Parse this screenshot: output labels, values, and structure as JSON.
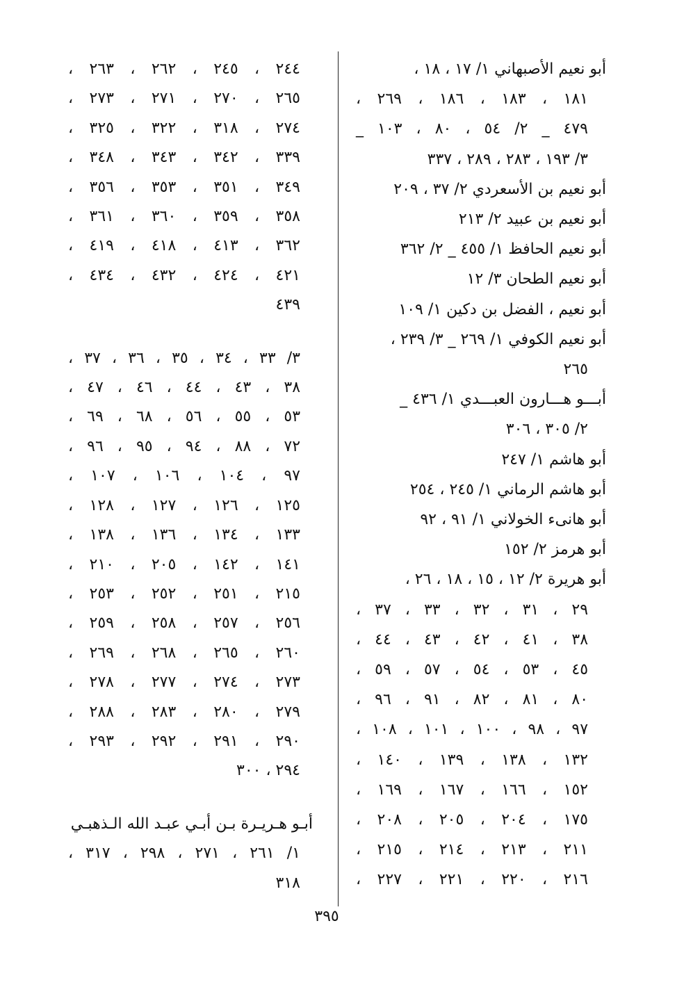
{
  "page_number": "٣٩٥",
  "right_column": {
    "lines": [
      "أبو نعيم الأصبهاني ١/ ١٧ ، ١٨ ،",
      "١٨١ ، ١٨٣ ، ١٨٦ ، ٢٦٩ ،",
      "٤٧٩ _ ٢/ ٥٤ ، ٨٠ ، ١٠٣ _",
      "٣/ ١٩٣ ، ٢٨٣ ، ٢٨٩ ، ٣٣٧",
      "أبو نعيم بن الأسعردي ٢/ ٣٧ ، ٢٠٩",
      "أبو نعيم بن عبيد ٢/ ٢١٣",
      "أبو نعيم الحافظ ١/ ٤٥٥ _ ٢/ ٣٦٢",
      "أبو نعيم الطحان ٣/ ١٢",
      "أبو نعيم ، الفضل بن دكين ١/ ١٠٩",
      "أبو نعيم الكوفي ١/ ٢٦٩ _ ٣/ ٢٣٩ ،",
      "٢٦٥",
      "أبـــو هـــارون العبـــدي ١/ ٤٣٦ _",
      "٢/ ٣٠٥ ، ٣٠٦",
      "أبو هاشم ١/ ٢٤٧",
      "أبو هاشم الرماني ١/ ٢٤٥ ، ٢٥٤",
      "أبو هانىء الخولاني ١/ ٩١ ، ٩٢",
      "أبو هرمز ٢/ ١٥٢",
      "أبو هريرة ٢/ ١٢ ، ١٥ ، ١٨ ، ٢٦ ،",
      "٢٩ ، ٣١ ، ٣٢ ، ٣٣ ، ٣٧ ،",
      "٣٨ ، ٤١ ، ٤٢ ، ٤٣ ، ٤٤ ،",
      "٤٥ ، ٥٣ ، ٥٤ ، ٥٧ ، ٥٩ ،",
      "٨٠ ، ٨١ ، ٨٢ ، ٩١ ، ٩٦ ،",
      "٩٧ ، ٩٨ ، ١٠٠ ، ١٠١ ، ١٠٨ ،",
      "١٣٢ ، ١٣٨ ، ١٣٩ ، ١٤٠ ،",
      "١٥٢ ، ١٦٦ ، ١٦٧ ، ١٦٩ ،",
      "١٧٥ ، ٢٠٤ ، ٢٠٥ ، ٢٠٨ ،",
      "٢١١ ، ٢١٣ ، ٢١٤ ، ٢١٥ ،",
      "٢١٦ ، ٢٢٠ ، ٢٢١ ، ٢٢٧ ،"
    ]
  },
  "left_column": {
    "lines": [
      "٢٤٤ ، ٢٤٥ ، ٢٦٢ ، ٢٦٣ ،",
      "٢٦٥ ، ٢٧٠ ، ٢٧١ ، ٢٧٣ ،",
      "٢٧٤ ، ٣١٨ ، ٣٢٢ ، ٣٢٥ ،",
      "٣٣٩ ، ٣٤٢ ، ٣٤٣ ، ٣٤٨ ،",
      "٣٤٩ ، ٣٥١ ، ٣٥٣ ، ٣٥٦ ،",
      "٣٥٨ ، ٣٥٩ ، ٣٦٠ ، ٣٦١ ،",
      "٣٦٢ ، ٤١٣ ، ٤١٨ ، ٤١٩ ،",
      "٤٢١ ، ٤٢٤ ، ٤٣٢ ، ٤٣٤ ،",
      "٤٣٩",
      "٣/ ٣٣ ، ٣٤ ، ٣٥ ، ٣٦ ، ٣٧ ،",
      "٣٨ ، ٤٣ ، ٤٤ ، ٤٦ ، ٤٧ ،",
      "٥٣ ، ٥٥ ، ٥٦ ، ٦٨ ، ٦٩ ،",
      "٧٢ ، ٨٨ ، ٩٤ ، ٩٥ ، ٩٦ ،",
      "٩٧ ، ١٠٤ ، ١٠٦ ، ١٠٧ ،",
      "١٢٥ ، ١٢٦ ، ١٢٧ ، ١٢٨ ،",
      "١٣٣ ، ١٣٤ ، ١٣٦ ، ١٣٨ ،",
      "١٤١ ، ١٤٢ ، ٢٠٥ ، ٢١٠ ،",
      "٢١٥ ، ٢٥١ ، ٢٥٢ ، ٢٥٣ ،",
      "٢٥٦ ، ٢٥٧ ، ٢٥٨ ، ٢٥٩ ،",
      "٢٦٠ ، ٢٦٥ ، ٢٦٨ ، ٢٦٩ ،",
      "٢٧٣ ، ٢٧٤ ، ٢٧٧ ، ٢٧٨ ،",
      "٢٧٩ ، ٢٨٠ ، ٢٨٣ ، ٢٨٨ ،",
      "٢٩٠ ، ٢٩١ ، ٢٩٢ ، ٢٩٣ ،",
      "٢٩٤ ، ٣٠٠",
      "أبـو هـريـرة بـن أبـي عبـد الله الـذهبـي",
      "١/ ٢٦١ ، ٢٧١ ، ٢٩٨ ، ٣١٧ ،",
      "٣١٨"
    ]
  }
}
